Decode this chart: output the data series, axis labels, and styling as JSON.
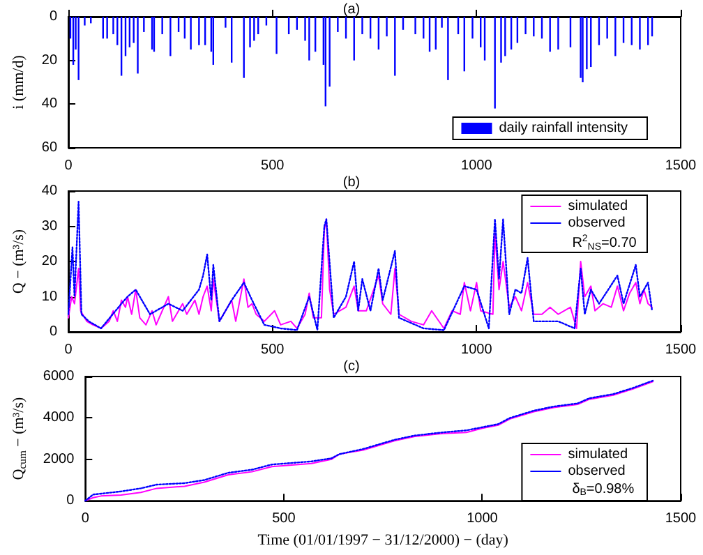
{
  "chart_data": [
    {
      "type": "bar",
      "title": "(a)",
      "ylabel": "i (mm/d)",
      "xlim": [
        0,
        1500
      ],
      "xticks": [
        0,
        500,
        1000,
        1500
      ],
      "ylim": [
        60,
        0
      ],
      "yticks": [
        0,
        20,
        40,
        60
      ],
      "legend": "bottom right",
      "grid": false,
      "series": [
        {
          "name": "daily rainfall intensity",
          "color": "#0000ff",
          "x": [
            5,
            12,
            18,
            25,
            40,
            55,
            85,
            95,
            110,
            120,
            130,
            140,
            150,
            160,
            170,
            185,
            205,
            210,
            230,
            250,
            270,
            285,
            300,
            320,
            335,
            350,
            355,
            385,
            400,
            430,
            445,
            455,
            465,
            485,
            510,
            540,
            560,
            580,
            590,
            605,
            625,
            630,
            640,
            660,
            680,
            700,
            720,
            740,
            760,
            780,
            800,
            820,
            850,
            870,
            885,
            900,
            915,
            930,
            955,
            970,
            990,
            1010,
            1020,
            1045,
            1060,
            1070,
            1085,
            1100,
            1120,
            1140,
            1160,
            1180,
            1200,
            1230,
            1255,
            1260,
            1270,
            1280,
            1300,
            1320,
            1340,
            1360,
            1380,
            1400,
            1420,
            1430
          ],
          "values": [
            10,
            22,
            15,
            29,
            4,
            3,
            10,
            10,
            8,
            13,
            27,
            18,
            14,
            12,
            26,
            7,
            15,
            16,
            8,
            18,
            7,
            10,
            15,
            13,
            13,
            16,
            22,
            5,
            21,
            28,
            14,
            11,
            8,
            4,
            17,
            8,
            6,
            11,
            20,
            16,
            22,
            41,
            32,
            7,
            10,
            20,
            8,
            10,
            15,
            9,
            27,
            6,
            8,
            10,
            16,
            15,
            5,
            29,
            8,
            25,
            10,
            14,
            20,
            42,
            21,
            18,
            15,
            12,
            8,
            9,
            10,
            16,
            15,
            14,
            28,
            30,
            24,
            23,
            13,
            10,
            18,
            12,
            13,
            15,
            13,
            9
          ]
        }
      ]
    },
    {
      "type": "line",
      "title": "(b)",
      "ylabel": "Q − (m³/s)",
      "xlim": [
        0,
        1500
      ],
      "xticks": [
        0,
        500,
        1000,
        1500
      ],
      "ylim": [
        0,
        40
      ],
      "yticks": [
        0,
        10,
        20,
        30,
        40
      ],
      "legend": "top right",
      "grid": false,
      "annotations": [
        "R$^{2}$$_{NS}$=0.70"
      ],
      "series": [
        {
          "name": "simulated",
          "color": "#ff00ff",
          "line_style": "solid",
          "x": [
            0,
            8,
            15,
            25,
            30,
            45,
            60,
            80,
            100,
            110,
            120,
            130,
            140,
            145,
            155,
            165,
            175,
            190,
            205,
            215,
            245,
            255,
            280,
            290,
            310,
            320,
            330,
            340,
            350,
            355,
            370,
            400,
            410,
            430,
            440,
            450,
            460,
            480,
            505,
            520,
            545,
            560,
            580,
            590,
            600,
            620,
            627,
            632,
            640,
            650,
            680,
            700,
            710,
            730,
            760,
            770,
            790,
            800,
            810,
            840,
            870,
            890,
            920,
            940,
            960,
            970,
            985,
            1000,
            1010,
            1040,
            1045,
            1055,
            1065,
            1080,
            1095,
            1110,
            1125,
            1140,
            1160,
            1180,
            1200,
            1215,
            1230,
            1245,
            1255,
            1265,
            1280,
            1290,
            1310,
            1330,
            1345,
            1360,
            1375,
            1390,
            1400,
            1410,
            1420,
            1430
          ],
          "values": [
            4,
            10,
            8,
            18,
            6,
            3,
            2,
            1,
            3,
            6,
            3,
            9,
            7,
            10,
            5,
            12,
            4,
            2,
            6,
            2,
            10,
            3,
            8,
            5,
            9,
            5,
            10,
            13,
            6,
            15,
            3,
            9,
            3,
            15,
            7,
            8,
            5,
            3,
            6,
            2,
            3,
            1,
            5,
            11,
            4,
            4,
            29,
            32,
            12,
            5,
            7,
            13,
            6,
            6,
            16,
            8,
            5,
            18,
            5,
            3,
            2,
            6,
            1,
            6,
            5,
            14,
            6,
            14,
            6,
            5,
            28,
            12,
            20,
            7,
            10,
            6,
            14,
            5,
            5,
            7,
            5,
            6,
            7,
            1,
            20,
            10,
            13,
            6,
            8,
            7,
            13,
            6,
            11,
            14,
            8,
            12,
            8,
            7
          ]
        },
        {
          "name": "observed",
          "color": "#0000ff",
          "line_style": "dotted",
          "x": [
            0,
            10,
            15,
            25,
            32,
            50,
            80,
            130,
            145,
            165,
            200,
            245,
            280,
            320,
            330,
            340,
            350,
            355,
            370,
            400,
            430,
            450,
            480,
            520,
            560,
            590,
            610,
            627,
            632,
            650,
            680,
            700,
            710,
            720,
            740,
            760,
            770,
            800,
            810,
            870,
            920,
            970,
            1000,
            1030,
            1045,
            1055,
            1065,
            1080,
            1095,
            1110,
            1125,
            1140,
            1200,
            1240,
            1255,
            1265,
            1280,
            1300,
            1345,
            1360,
            1390,
            1400,
            1420,
            1430
          ],
          "values": [
            5,
            24,
            10,
            37,
            5,
            3,
            1,
            8,
            10,
            12,
            5,
            8,
            6,
            12,
            16,
            22,
            9,
            19,
            3,
            9,
            14,
            9,
            2,
            1,
            0.5,
            10,
            0.5,
            30,
            32,
            4,
            10,
            20,
            6,
            15,
            6,
            18,
            9,
            23,
            4,
            1,
            0.5,
            13,
            12,
            1,
            32,
            15,
            32,
            5,
            12,
            11,
            21,
            3,
            3,
            1,
            18,
            5,
            12,
            8,
            16,
            8,
            19,
            10,
            14,
            6
          ]
        }
      ]
    },
    {
      "type": "line",
      "title": "(c)",
      "ylabel": "Q$_{cum}$ − (m³/s)",
      "xlabel": "Time (01/01/1997 − 31/12/2000) − (day)",
      "xlim": [
        0,
        1500
      ],
      "xticks": [
        0,
        500,
        1000,
        1500
      ],
      "ylim": [
        0,
        6000
      ],
      "yticks": [
        0,
        2000,
        4000,
        6000
      ],
      "legend": "bottom right",
      "grid": false,
      "annotations": [
        "δ$_{B}$=0.98%"
      ],
      "series": [
        {
          "name": "simulated",
          "color": "#ff00ff",
          "line_style": "solid",
          "x": [
            0,
            20,
            40,
            90,
            140,
            180,
            250,
            300,
            360,
            420,
            470,
            570,
            620,
            640,
            700,
            780,
            830,
            900,
            960,
            1000,
            1040,
            1070,
            1130,
            1180,
            1240,
            1270,
            1330,
            1380,
            1430
          ],
          "values": [
            0,
            150,
            230,
            280,
            400,
            600,
            700,
            900,
            1250,
            1400,
            1650,
            1800,
            2000,
            2250,
            2450,
            2900,
            3100,
            3250,
            3300,
            3500,
            3650,
            3950,
            4300,
            4500,
            4650,
            4900,
            5100,
            5400,
            5750
          ]
        },
        {
          "name": "observed",
          "color": "#0000ff",
          "line_style": "dotted",
          "x": [
            0,
            20,
            90,
            140,
            180,
            250,
            300,
            360,
            420,
            470,
            570,
            620,
            640,
            700,
            780,
            830,
            900,
            960,
            1000,
            1040,
            1070,
            1130,
            1180,
            1240,
            1270,
            1330,
            1380,
            1430
          ],
          "values": [
            0,
            300,
            450,
            600,
            780,
            850,
            1000,
            1350,
            1500,
            1750,
            1900,
            2050,
            2250,
            2500,
            2950,
            3150,
            3300,
            3400,
            3550,
            3700,
            4000,
            4350,
            4550,
            4700,
            4950,
            5150,
            5450,
            5800
          ]
        }
      ]
    }
  ]
}
